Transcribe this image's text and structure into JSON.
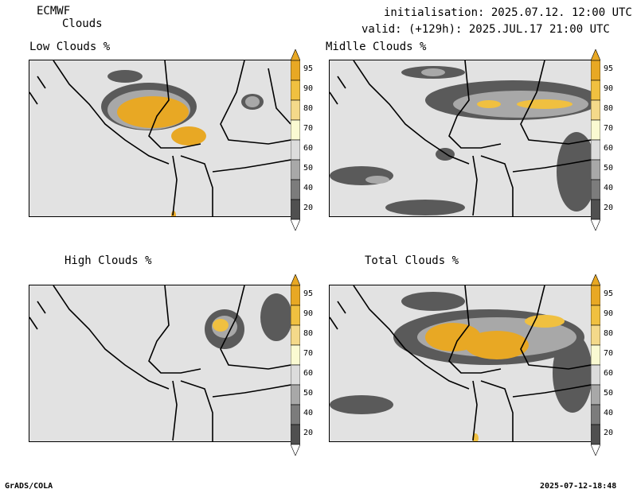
{
  "header": {
    "model": "ECMWF",
    "product": "Clouds",
    "init_line": "initialisation: 2025.07.12. 12:00 UTC",
    "valid_line": "valid: (+129h): 2025.JUL.17 21:00 UTC"
  },
  "panels": [
    {
      "title": "Low Clouds %"
    },
    {
      "title": "Midlle Clouds %"
    },
    {
      "title": "High Clouds %"
    },
    {
      "title": "Total Clouds %"
    }
  ],
  "legend": {
    "labels": [
      "95",
      "90",
      "80",
      "70",
      "60",
      "50",
      "40",
      "20"
    ],
    "colors": [
      "#e8a824",
      "#f0c040",
      "#f4d98a",
      "#fafad2",
      "#dcdcdc",
      "#a8a8a8",
      "#7c7c7c",
      "#505050"
    ]
  },
  "footer": {
    "left": "GrADS/COLA",
    "right": "2025-07-12-18:48"
  }
}
